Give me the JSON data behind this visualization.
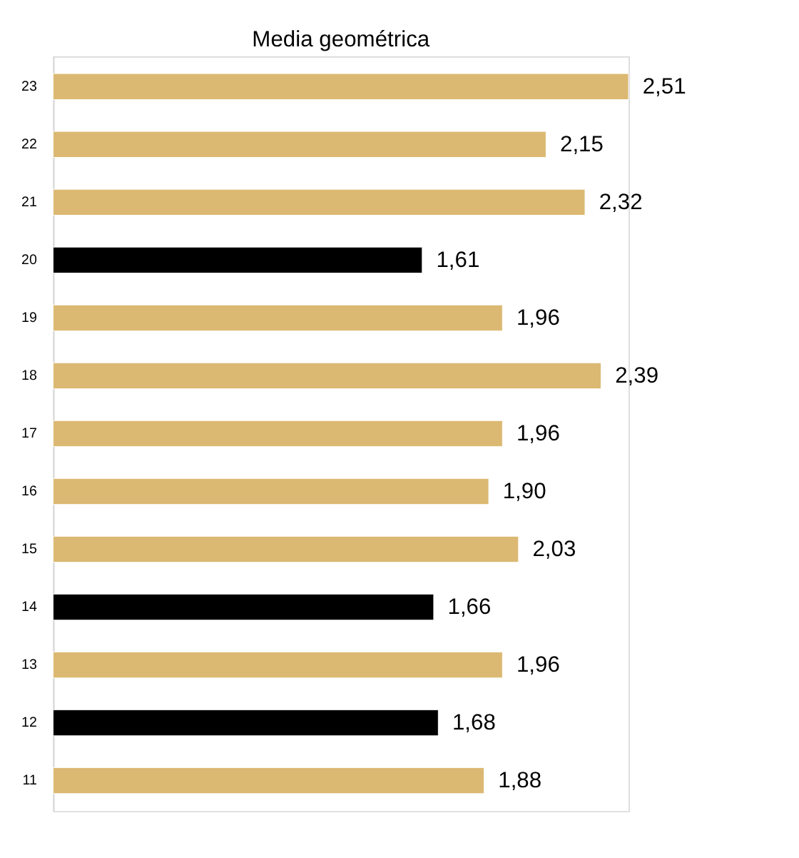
{
  "chart_data": {
    "type": "bar",
    "orientation": "horizontal",
    "title": "Media  geométrica",
    "categories": [
      "23",
      "22",
      "21",
      "20",
      "19",
      "18",
      "17",
      "16",
      "15",
      "14",
      "13",
      "12",
      "11"
    ],
    "values": [
      2.51,
      2.15,
      2.32,
      1.61,
      1.96,
      2.39,
      1.96,
      1.9,
      2.03,
      1.66,
      1.96,
      1.68,
      1.88
    ],
    "value_labels": [
      "2,51",
      "2,15",
      "2,32",
      "1,61",
      "1,96",
      "2,39",
      "1,96",
      "1,90",
      "2,03",
      "1,66",
      "1,96",
      "1,68",
      "1,88"
    ],
    "colors": [
      "#dbb972",
      "#dbb972",
      "#dbb972",
      "#000000",
      "#dbb972",
      "#dbb972",
      "#dbb972",
      "#dbb972",
      "#dbb972",
      "#000000",
      "#dbb972",
      "#000000",
      "#dbb972"
    ],
    "grid": false,
    "legend": false
  }
}
